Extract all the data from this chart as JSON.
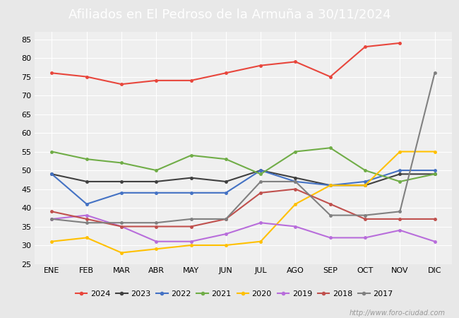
{
  "title": "Afiliados en El Pedroso de la Armuña a 30/11/2024",
  "title_bg": "#4d7cc9",
  "title_color": "white",
  "ylim": [
    25,
    87
  ],
  "yticks": [
    25,
    30,
    35,
    40,
    45,
    50,
    55,
    60,
    65,
    70,
    75,
    80,
    85
  ],
  "months": [
    "ENE",
    "FEB",
    "MAR",
    "ABR",
    "MAY",
    "JUN",
    "JUL",
    "AGO",
    "SEP",
    "OCT",
    "NOV",
    "DIC"
  ],
  "watermark": "http://www.foro-ciudad.com",
  "series": {
    "2024": {
      "color": "#e8463c",
      "data": [
        76,
        75,
        73,
        74,
        74,
        76,
        78,
        79,
        75,
        83,
        84,
        null
      ]
    },
    "2023": {
      "color": "#404040",
      "data": [
        49,
        47,
        47,
        47,
        48,
        47,
        50,
        48,
        46,
        46,
        49,
        49
      ]
    },
    "2022": {
      "color": "#4472c4",
      "data": [
        49,
        41,
        44,
        44,
        44,
        44,
        50,
        47,
        46,
        47,
        50,
        50
      ]
    },
    "2021": {
      "color": "#70ad47",
      "data": [
        55,
        53,
        52,
        50,
        54,
        53,
        49,
        55,
        56,
        50,
        47,
        49
      ]
    },
    "2020": {
      "color": "#ffc000",
      "data": [
        31,
        32,
        28,
        29,
        30,
        30,
        31,
        41,
        46,
        46,
        55,
        55
      ]
    },
    "2019": {
      "color": "#b86ddb",
      "data": [
        37,
        38,
        35,
        31,
        31,
        33,
        36,
        35,
        32,
        32,
        34,
        31
      ]
    },
    "2018": {
      "color": "#c0504d",
      "data": [
        39,
        37,
        35,
        35,
        35,
        37,
        44,
        45,
        41,
        37,
        37,
        37
      ]
    },
    "2017": {
      "color": "#808080",
      "data": [
        37,
        36,
        36,
        36,
        37,
        37,
        47,
        47,
        38,
        38,
        39,
        76
      ]
    }
  },
  "legend_order": [
    "2024",
    "2023",
    "2022",
    "2021",
    "2020",
    "2019",
    "2018",
    "2017"
  ],
  "background_color": "#e8e8e8",
  "plot_bg": "#efefef",
  "grid_color": "white",
  "fontsize_title": 13,
  "fontsize_ticks": 8,
  "fontsize_legend": 8,
  "fontsize_watermark": 7
}
